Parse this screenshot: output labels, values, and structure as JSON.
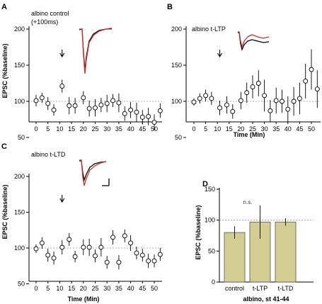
{
  "panels": [
    {
      "label": "A",
      "title": "albino control",
      "subtitle": "(+100ms)",
      "ylabel": "EPSC (%baseline)",
      "xlabel": "",
      "traces": "black-red"
    },
    {
      "label": "B",
      "title": "albino t-LTP",
      "subtitle": "",
      "ylabel": "",
      "xlabel": "Time (Min)",
      "traces": "red-black"
    },
    {
      "label": "C",
      "title": "albino t-LTD",
      "subtitle": "",
      "ylabel": "EPSC (%baseline)",
      "xlabel": "Time (Min)",
      "traces": "black-red"
    },
    {
      "label": "D",
      "title": "",
      "subtitle": "",
      "ylabel": "EPSC (%baseline)",
      "xlabel": "albino, st 41-44",
      "annotation": "n.s."
    }
  ],
  "colors": {
    "points": "#000000",
    "baseline": "#999999",
    "trace_red": "#d0302a",
    "trace_black": "#000000",
    "bar_fill": "#d4cd92"
  },
  "icons": [
    "down-arrow-icon"
  ],
  "chart_data": [
    {
      "type": "scatter",
      "panel": "A",
      "ylim": [
        0,
        200
      ],
      "yticks": [
        50,
        100,
        150,
        200
      ],
      "xlim": [
        -3,
        53
      ],
      "xticks": [
        0,
        5,
        10,
        15,
        20,
        25,
        30,
        35,
        40,
        45,
        50
      ],
      "baseline": 100,
      "arrow_x": 11,
      "series": [
        {
          "x": [
            0,
            2.5,
            5,
            7.5,
            11,
            14,
            16.5,
            20,
            22.5,
            25,
            27.5,
            30,
            32.5,
            35,
            37.5,
            40,
            42.5,
            45,
            47.5,
            50,
            52.5
          ],
          "y": [
            101,
            105,
            97,
            88,
            121,
            94,
            94,
            105,
            90,
            91,
            95,
            97,
            101,
            98,
            83,
            88,
            85,
            78,
            79,
            71,
            87
          ],
          "err": [
            8,
            7,
            9,
            8,
            9,
            12,
            11,
            9,
            11,
            12,
            10,
            12,
            9,
            13,
            10,
            11,
            13,
            10,
            12,
            11,
            10
          ]
        }
      ]
    },
    {
      "type": "scatter",
      "panel": "B",
      "ylim": [
        0,
        200
      ],
      "yticks": [
        50,
        100,
        150,
        200
      ],
      "xlim": [
        -3,
        53
      ],
      "xticks": [
        0,
        5,
        10,
        15,
        20,
        25,
        30,
        35,
        40,
        45,
        50
      ],
      "baseline": 100,
      "arrow_x": 11,
      "series": [
        {
          "x": [
            0,
            2.5,
            5,
            7.5,
            11,
            14,
            16.5,
            20,
            22.5,
            25,
            27.5,
            30,
            32.5,
            35,
            37.5,
            40,
            42.5,
            45,
            47.5,
            50,
            52.5
          ],
          "y": [
            99,
            104,
            108,
            104,
            91,
            95,
            86,
            101,
            112,
            120,
            125,
            108,
            87,
            101,
            100,
            89,
            100,
            104,
            128,
            144,
            117
          ],
          "err": [
            5,
            7,
            8,
            9,
            10,
            12,
            10,
            12,
            14,
            16,
            18,
            22,
            15,
            18,
            16,
            18,
            20,
            22,
            24,
            28,
            26
          ]
        }
      ]
    },
    {
      "type": "scatter",
      "panel": "C",
      "ylim": [
        0,
        200
      ],
      "yticks": [
        50,
        100,
        150,
        200
      ],
      "xlim": [
        -3,
        53
      ],
      "xticks": [
        0,
        5,
        10,
        15,
        20,
        25,
        30,
        35,
        40,
        45,
        50
      ],
      "baseline": 100,
      "arrow_x": 11,
      "series": [
        {
          "x": [
            0,
            2.5,
            5,
            7.5,
            11,
            14,
            16.5,
            20,
            22.5,
            25,
            27.5,
            30,
            32.5,
            35,
            37.5,
            40,
            42.5,
            45,
            47.5,
            50,
            52.5
          ],
          "y": [
            99,
            107,
            90,
            86,
            101,
            112,
            88,
            101,
            101,
            89,
            101,
            80,
            115,
            80,
            117,
            107,
            93,
            90,
            82,
            82,
            91
          ],
          "err": [
            6,
            8,
            9,
            9,
            10,
            9,
            8,
            11,
            12,
            9,
            13,
            9,
            10,
            10,
            9,
            11,
            9,
            9,
            10,
            9,
            9
          ]
        }
      ]
    },
    {
      "type": "bar",
      "panel": "D",
      "categories": [
        "control",
        "t-LTP",
        "t-LTD"
      ],
      "values": [
        80,
        97,
        97
      ],
      "errors": [
        10,
        27,
        6
      ],
      "ylim": [
        0,
        150
      ],
      "yticks": [
        0,
        50,
        100,
        150
      ],
      "baseline": 100
    }
  ]
}
